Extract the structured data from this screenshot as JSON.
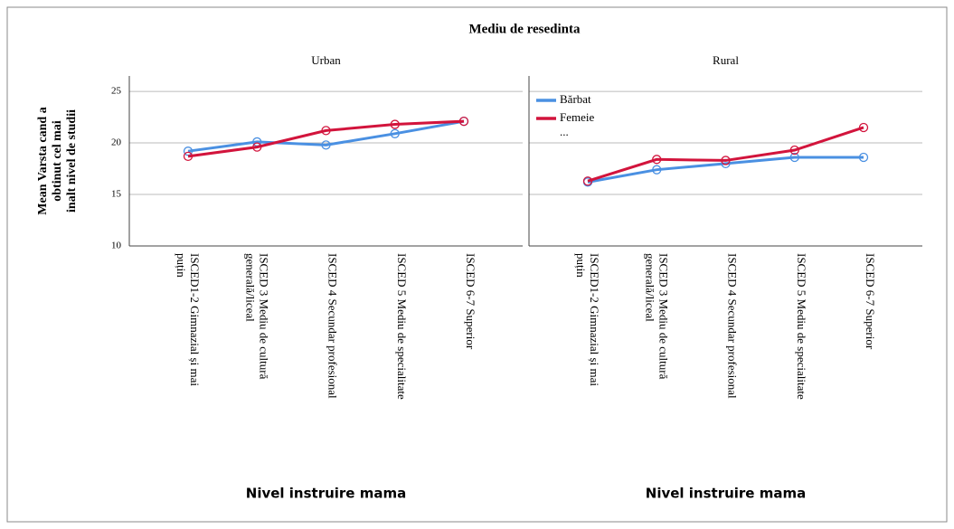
{
  "chart_data": {
    "type": "line",
    "title": "Mediu de resedinta",
    "ylabel": [
      "Mean Varsta cand a",
      "obtinut cel mai",
      "inalt nivel de studii"
    ],
    "xlabel": "Nivel instruire mama",
    "categories": [
      [
        "ISCED1-2 Gimnazial și mai",
        "puțin"
      ],
      [
        "ISCED 3 Mediu de cultură",
        "generală/liceal"
      ],
      [
        "ISCED 4 Secundar profesional"
      ],
      [
        "ISCED 5 Mediu de specialitate"
      ],
      [
        "ISCED 6-7 Superior"
      ]
    ],
    "ylim": [
      10,
      26.5
    ],
    "yticks": [
      10,
      15,
      20,
      25
    ],
    "grid": true,
    "legend": "upper left",
    "legend_more": "...",
    "panels": [
      {
        "title": "Urban",
        "series": [
          {
            "name": "Bărbat",
            "color": "#4a90e2",
            "values": [
              19.2,
              20.1,
              19.8,
              20.9,
              22.1
            ]
          },
          {
            "name": "Femeie",
            "color": "#d2143c",
            "values": [
              18.7,
              19.6,
              21.2,
              21.8,
              22.1
            ]
          }
        ]
      },
      {
        "title": "Rural",
        "series": [
          {
            "name": "Bărbat",
            "color": "#4a90e2",
            "values": [
              16.2,
              17.4,
              18.0,
              18.6,
              18.6
            ]
          },
          {
            "name": "Femeie",
            "color": "#d2143c",
            "values": [
              16.3,
              18.4,
              18.3,
              19.3,
              21.5
            ]
          }
        ]
      }
    ]
  }
}
